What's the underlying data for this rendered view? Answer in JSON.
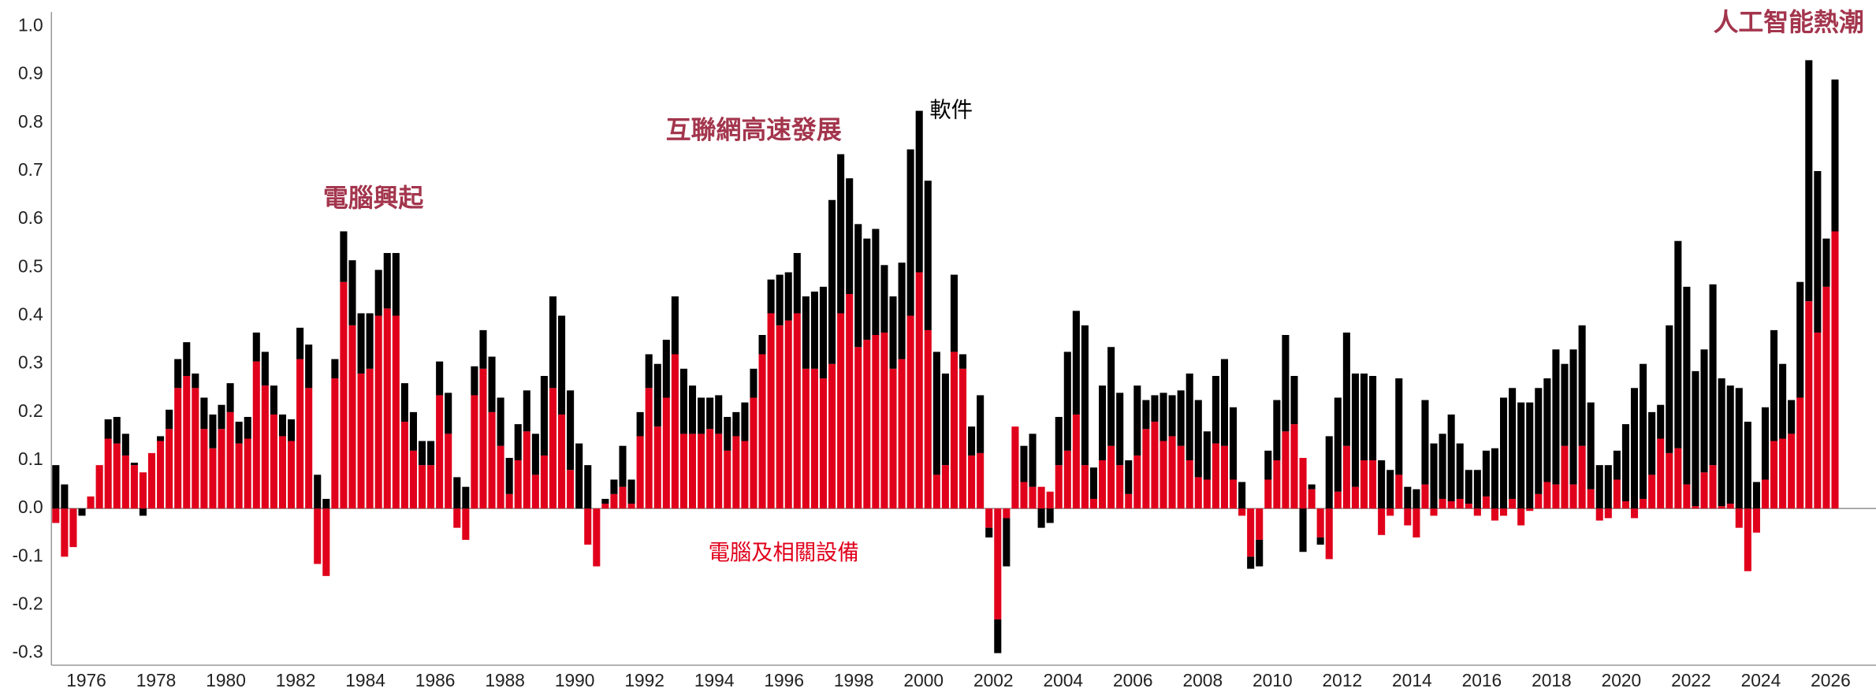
{
  "chart_data": {
    "type": "stacked_bar",
    "annotations": [
      "電腦興起",
      "互聯網高速發展",
      "人工智能熱潮"
    ],
    "xlim": [
      1975,
      2027.3
    ],
    "xticks": [
      1976,
      1978,
      1980,
      1982,
      1984,
      1986,
      1988,
      1990,
      1992,
      1994,
      1996,
      1998,
      2000,
      2002,
      2004,
      2006,
      2008,
      2010,
      2012,
      2014,
      2016,
      2018,
      2020,
      2022,
      2024,
      2026
    ],
    "ylim": [
      -0.325,
      1.03
    ],
    "yticks": [
      {
        "value": 1,
        "label": "1.0"
      },
      0.9,
      0.8,
      0.7,
      0.6,
      0.5,
      0.4,
      0.3,
      0.2,
      0.1,
      {
        "value": 0,
        "label": "0.0"
      },
      -0.1,
      -0.2,
      -0.3
    ],
    "x": [
      1975.125,
      1975.375,
      1975.625,
      1975.875,
      1976.125,
      1976.375,
      1976.625,
      1976.875,
      1977.125,
      1977.375,
      1977.625,
      1977.875,
      1978.125,
      1978.375,
      1978.625,
      1978.875,
      1979.125,
      1979.375,
      1979.625,
      1979.875,
      1980.125,
      1980.375,
      1980.625,
      1980.875,
      1981.125,
      1981.375,
      1981.625,
      1981.875,
      1982.125,
      1982.375,
      1982.625,
      1982.875,
      1983.125,
      1983.375,
      1983.625,
      1983.875,
      1984.125,
      1984.375,
      1984.625,
      1984.875,
      1985.125,
      1985.375,
      1985.625,
      1985.875,
      1986.125,
      1986.375,
      1986.625,
      1986.875,
      1987.125,
      1987.375,
      1987.625,
      1987.875,
      1988.125,
      1988.375,
      1988.625,
      1988.875,
      1989.125,
      1989.375,
      1989.625,
      1989.875,
      1990.125,
      1990.375,
      1990.625,
      1990.875,
      1991.125,
      1991.375,
      1991.625,
      1991.875,
      1992.125,
      1992.375,
      1992.625,
      1992.875,
      1993.125,
      1993.375,
      1993.625,
      1993.875,
      1994.125,
      1994.375,
      1994.625,
      1994.875,
      1995.125,
      1995.375,
      1995.625,
      1995.875,
      1996.125,
      1996.375,
      1996.625,
      1996.875,
      1997.125,
      1997.375,
      1997.625,
      1997.875,
      1998.125,
      1998.375,
      1998.625,
      1998.875,
      1999.125,
      1999.375,
      1999.625,
      1999.875,
      2000.125,
      2000.375,
      2000.625,
      2000.875,
      2001.125,
      2001.375,
      2001.625,
      2001.875,
      2002.125,
      2002.375,
      2002.625,
      2002.875,
      2003.125,
      2003.375,
      2003.625,
      2003.875,
      2004.125,
      2004.375,
      2004.625,
      2004.875,
      2005.125,
      2005.375,
      2005.625,
      2005.875,
      2006.125,
      2006.375,
      2006.625,
      2006.875,
      2007.125,
      2007.375,
      2007.625,
      2007.875,
      2008.125,
      2008.375,
      2008.625,
      2008.875,
      2009.125,
      2009.375,
      2009.625,
      2009.875,
      2010.125,
      2010.375,
      2010.625,
      2010.875,
      2011.125,
      2011.375,
      2011.625,
      2011.875,
      2012.125,
      2012.375,
      2012.625,
      2012.875,
      2013.125,
      2013.375,
      2013.625,
      2013.875,
      2014.125,
      2014.375,
      2014.625,
      2014.875,
      2015.125,
      2015.375,
      2015.625,
      2015.875,
      2016.125,
      2016.375,
      2016.625,
      2016.875,
      2017.125,
      2017.375,
      2017.625,
      2017.875,
      2018.125,
      2018.375,
      2018.625,
      2018.875,
      2019.125,
      2019.375,
      2019.625,
      2019.875,
      2020.125,
      2020.375,
      2020.625,
      2020.875,
      2021.125,
      2021.375,
      2021.625,
      2021.875,
      2022.125,
      2022.375,
      2022.625,
      2022.875,
      2023.125,
      2023.375,
      2023.625,
      2023.875,
      2024.125,
      2024.375,
      2024.625,
      2024.875,
      2025.125,
      2025.375,
      2025.625,
      2025.875,
      2026.125
    ],
    "series": [
      {
        "name": "電腦及相關設備",
        "color": "#e0001b",
        "values": [
          -0.03,
          -0.1,
          -0.08,
          0,
          0.025,
          0.09,
          0.145,
          0.135,
          0.11,
          0.09,
          0.075,
          0.115,
          0.14,
          0.165,
          0.25,
          0.275,
          0.25,
          0.165,
          0.125,
          0.165,
          0.2,
          0.135,
          0.145,
          0.305,
          0.255,
          0.195,
          0.15,
          0.14,
          0.31,
          0.25,
          -0.115,
          -0.14,
          0.27,
          0.47,
          0.38,
          0.28,
          0.29,
          0.4,
          0.415,
          0.4,
          0.18,
          0.12,
          0.09,
          0.09,
          0.235,
          0.155,
          -0.04,
          -0.065,
          0.235,
          0.29,
          0.2,
          0.13,
          0.03,
          0.1,
          0.16,
          0.07,
          0.11,
          0.25,
          0.195,
          0.08,
          0,
          -0.075,
          -0.12,
          0.01,
          0.03,
          0.045,
          0.01,
          0.15,
          0.25,
          0.17,
          0.23,
          0.32,
          0.155,
          0.155,
          0.155,
          0.165,
          0.155,
          0.12,
          0.15,
          0.14,
          0.23,
          0.32,
          0.405,
          0.38,
          0.39,
          0.405,
          0.29,
          0.29,
          0.27,
          0.3,
          0.405,
          0.445,
          0.335,
          0.35,
          0.36,
          0.365,
          0.29,
          0.31,
          0.4,
          0.49,
          0.37,
          0.07,
          0.09,
          0.325,
          0.29,
          0.11,
          0.115,
          -0.04,
          -0.23,
          -0.02,
          0.17,
          0.055,
          0.045,
          0.045,
          0.035,
          0.09,
          0.12,
          0.195,
          0.09,
          0.02,
          0.1,
          0.13,
          0.09,
          0.03,
          0.11,
          0.165,
          0.18,
          0.14,
          0.15,
          0.13,
          0.1,
          0.065,
          0.06,
          0.135,
          0.13,
          0.06,
          -0.015,
          -0.1,
          -0.065,
          0.06,
          0.1,
          0.16,
          0.175,
          0.105,
          0.04,
          -0.06,
          -0.105,
          0.035,
          0.13,
          0.045,
          0.1,
          0.1,
          -0.055,
          -0.015,
          0.07,
          -0.035,
          -0.06,
          0.05,
          -0.015,
          0.02,
          0.015,
          0.02,
          0.01,
          -0.015,
          0.025,
          -0.025,
          -0.015,
          0.02,
          -0.035,
          -0.005,
          0.03,
          0.055,
          0.05,
          0.13,
          0.05,
          0.13,
          0.04,
          -0.025,
          -0.02,
          0.06,
          0.015,
          -0.02,
          0.02,
          0.07,
          0.145,
          0.115,
          0.125,
          0.05,
          0.005,
          0.075,
          0.09,
          0.005,
          0.01,
          -0.04,
          -0.13,
          -0.05,
          0.06,
          0.14,
          0.145,
          0.155,
          0.23,
          0.43,
          0.365,
          0.46,
          0.575
        ]
      },
      {
        "name": "軟件",
        "color": "#000000",
        "values": [
          0.09,
          0.05,
          0,
          -0.015,
          0,
          0,
          0.04,
          0.055,
          0.045,
          0.005,
          -0.015,
          0,
          0.01,
          0.04,
          0.06,
          0.07,
          0.03,
          0.065,
          0.07,
          0.05,
          0.06,
          0.045,
          0.045,
          0.06,
          0.07,
          0.06,
          0.045,
          0.045,
          0.065,
          0.09,
          0.07,
          0.02,
          0.04,
          0.105,
          0.135,
          0.125,
          0.115,
          0.095,
          0.115,
          0.13,
          0.08,
          0.08,
          0.05,
          0.05,
          0.07,
          0.085,
          0.065,
          0.045,
          0.06,
          0.08,
          0.115,
          0.1,
          0.075,
          0.075,
          0.085,
          0.085,
          0.165,
          0.19,
          0.205,
          0.165,
          0.135,
          0.09,
          0,
          0.01,
          0.03,
          0.085,
          0.05,
          0.05,
          0.07,
          0.13,
          0.12,
          0.12,
          0.135,
          0.1,
          0.075,
          0.065,
          0.08,
          0.07,
          0.05,
          0.08,
          0.06,
          0.04,
          0.07,
          0.105,
          0.1,
          0.125,
          0.15,
          0.16,
          0.19,
          0.34,
          0.33,
          0.24,
          0.255,
          0.21,
          0.22,
          0.14,
          0.15,
          0.2,
          0.345,
          0.335,
          0.31,
          0.255,
          0.19,
          0.16,
          0.03,
          0.06,
          0.12,
          -0.02,
          -0.07,
          -0.1,
          0,
          0.075,
          0.11,
          -0.04,
          -0.03,
          0.1,
          0.205,
          0.215,
          0.29,
          0.065,
          0.155,
          0.205,
          0.15,
          0.07,
          0.145,
          0.06,
          0.055,
          0.1,
          0.085,
          0.115,
          0.18,
          0.16,
          0.1,
          0.14,
          0.18,
          0.15,
          0.055,
          -0.025,
          -0.055,
          0.06,
          0.125,
          0.2,
          0.1,
          -0.09,
          0.01,
          -0.015,
          0.15,
          0.195,
          0.235,
          0.235,
          0.18,
          0.175,
          0.1,
          0.08,
          0.2,
          0.045,
          0.04,
          0.175,
          0.135,
          0.135,
          0.18,
          0.115,
          0.07,
          0.08,
          0.095,
          0.125,
          0.23,
          0.23,
          0.22,
          0.22,
          0.22,
          0.215,
          0.28,
          0.17,
          0.28,
          0.25,
          0.18,
          0.09,
          0.09,
          0.06,
          0.16,
          0.25,
          0.28,
          0.13,
          0.07,
          0.265,
          0.43,
          0.41,
          0.28,
          0.255,
          0.375,
          0.265,
          0.245,
          0.25,
          0.18,
          0.055,
          0.15,
          0.23,
          0.155,
          0.07,
          0.24,
          0.5,
          0.335,
          0.1,
          0.315
        ]
      }
    ]
  }
}
